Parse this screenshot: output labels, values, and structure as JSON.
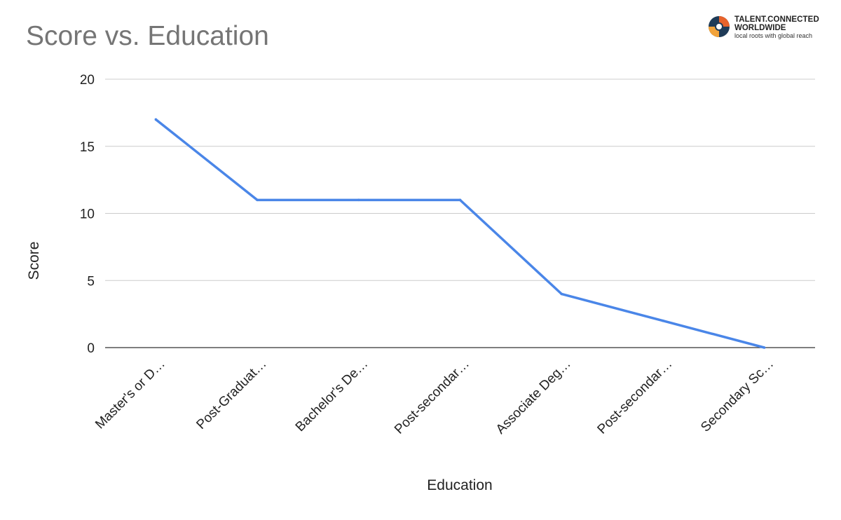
{
  "logo": {
    "line1": "TALENT.CONNECTED",
    "line2": "WORLDWIDE",
    "tagline": "local roots with global reach"
  },
  "chart_data": {
    "type": "line",
    "title": "Score vs. Education",
    "xlabel": "Education",
    "ylabel": "Score",
    "categories": [
      "Master's or D…",
      "Post-Graduat…",
      "Bachelor's De…",
      "Post-secondar…",
      "Associate Deg…",
      "Post-secondar…",
      "Secondary Sc…"
    ],
    "series": [
      {
        "values": [
          17,
          11,
          11,
          11,
          4,
          2,
          0
        ],
        "color": "#4a86e8"
      }
    ],
    "ylim": [
      0,
      20
    ],
    "yticks": [
      0,
      5,
      10,
      15,
      20
    ],
    "grid": true
  }
}
